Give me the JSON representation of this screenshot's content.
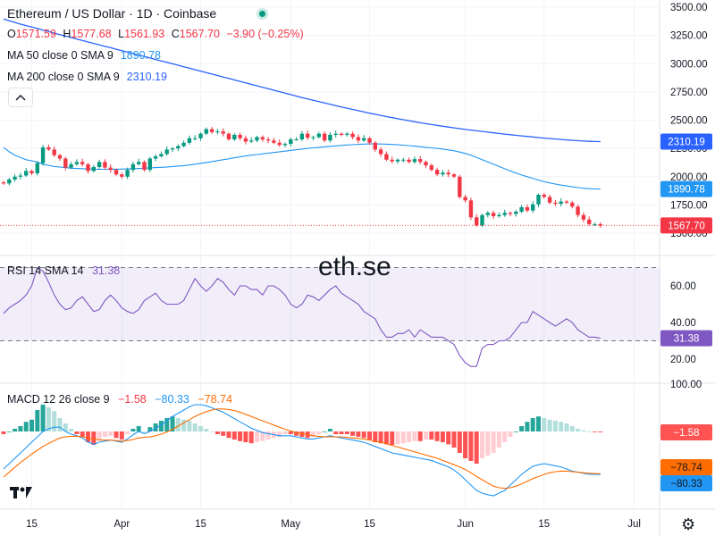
{
  "header": {
    "title": "Ethereum / US Dollar · 1D · Coinbase",
    "ohlc": [
      {
        "label": "O",
        "value": "1571.59"
      },
      {
        "label": "H",
        "value": "1577.68"
      },
      {
        "label": "L",
        "value": "1561.93"
      },
      {
        "label": "C",
        "value": "1567.70"
      },
      {
        "label": "",
        "value": "−3.90 (−0.25%)"
      }
    ],
    "ma50_label": "MA 50 close 0 SMA 9",
    "ma50_value": "1890.78",
    "ma200_label": "MA 200 close 0 SMA 9",
    "ma200_value": "2310.19"
  },
  "watermark": "eth.se",
  "colors": {
    "up": "#089981",
    "down": "#f23645",
    "ma50": "#2196f3",
    "ma200": "#2962ff",
    "rsi": "#7e57c2",
    "macd_line": "#2196f3",
    "signal_line": "#ff6d00"
  },
  "icons": [
    "live-status-icon",
    "collapse-chevron-icon",
    "tradingview-logo-icon",
    "settings-gear-icon"
  ],
  "chart_data": [
    {
      "type": "candlestick",
      "panel": "price",
      "y_ticks": [
        1500,
        1750,
        2000,
        2250,
        2500,
        2750,
        3000,
        3250,
        3500
      ],
      "y_tick_labels": [
        "1500.00",
        "1750.00",
        "2000.00",
        "2250.00",
        "2500.00",
        "2750.00",
        "3000.00",
        "3250.00",
        "3500.00"
      ],
      "ylim": [
        1480,
        3520
      ],
      "x_ticks": [
        {
          "index": 5,
          "label": "15"
        },
        {
          "index": 21,
          "label": "Apr"
        },
        {
          "index": 35,
          "label": "15"
        },
        {
          "index": 51,
          "label": "May"
        },
        {
          "index": 65,
          "label": "15"
        },
        {
          "index": 82,
          "label": "Jun"
        },
        {
          "index": 96,
          "label": "15"
        },
        {
          "index": 112,
          "label": "Jul"
        }
      ],
      "close": [
        1940,
        1975,
        2000,
        2010,
        2050,
        2030,
        2120,
        2260,
        2240,
        2190,
        2160,
        2080,
        2110,
        2130,
        2110,
        2050,
        2085,
        2130,
        2080,
        2060,
        2020,
        2000,
        2060,
        2110,
        2130,
        2060,
        2160,
        2180,
        2200,
        2240,
        2250,
        2270,
        2300,
        2340,
        2340,
        2380,
        2420,
        2395,
        2400,
        2380,
        2330,
        2370,
        2340,
        2310,
        2320,
        2350,
        2330,
        2320,
        2300,
        2280,
        2290,
        2330,
        2330,
        2380,
        2345,
        2350,
        2380,
        2320,
        2370,
        2380,
        2370,
        2380,
        2350,
        2320,
        2340,
        2300,
        2240,
        2200,
        2150,
        2135,
        2150,
        2150,
        2130,
        2155,
        2130,
        2100,
        2060,
        2020,
        2035,
        2020,
        2000,
        1820,
        1790,
        1640,
        1570,
        1660,
        1680,
        1650,
        1660,
        1680,
        1670,
        1690,
        1730,
        1700,
        1755,
        1840,
        1820,
        1770,
        1760,
        1780,
        1770,
        1735,
        1660,
        1620,
        1580,
        1580,
        1568
      ],
      "ma50": [
        2260,
        2220,
        2190,
        2170,
        2150,
        2140,
        2130,
        2110,
        2100,
        2090,
        2085,
        2080,
        2075,
        2072,
        2070,
        2068,
        2066,
        2065,
        2065,
        2065,
        2066,
        2067,
        2068,
        2070,
        2072,
        2075,
        2078,
        2080,
        2083,
        2086,
        2090,
        2094,
        2098,
        2103,
        2110,
        2118,
        2125,
        2133,
        2142,
        2150,
        2158,
        2167,
        2175,
        2183,
        2190,
        2196,
        2202,
        2208,
        2214,
        2220,
        2226,
        2232,
        2238,
        2244,
        2250,
        2255,
        2260,
        2264,
        2268,
        2272,
        2276,
        2280,
        2283,
        2286,
        2288,
        2290,
        2290,
        2289,
        2287,
        2285,
        2282,
        2279,
        2275,
        2270,
        2265,
        2260,
        2255,
        2250,
        2244,
        2237,
        2229,
        2218,
        2205,
        2190,
        2170,
        2150,
        2130,
        2110,
        2090,
        2070,
        2050,
        2032,
        2015,
        2000,
        1985,
        1970,
        1955,
        1945,
        1935,
        1925,
        1918,
        1910,
        1903,
        1898,
        1894,
        1891,
        1890.78
      ],
      "ma200": [
        3395,
        3380,
        3365,
        3350,
        3337,
        3324,
        3311,
        3297,
        3284,
        3270,
        3257,
        3244,
        3231,
        3218,
        3205,
        3192,
        3179,
        3166,
        3153,
        3141,
        3128,
        3115,
        3102,
        3089,
        3076,
        3063,
        3050,
        3037,
        3024,
        3012,
        2999,
        2986,
        2973,
        2960,
        2947,
        2934,
        2921,
        2908,
        2895,
        2882,
        2869,
        2856,
        2843,
        2830,
        2817,
        2804,
        2791,
        2778,
        2765,
        2752,
        2739,
        2726,
        2713,
        2700,
        2688,
        2676,
        2664,
        2652,
        2640,
        2628,
        2617,
        2606,
        2595,
        2584,
        2573,
        2562,
        2552,
        2542,
        2532,
        2522,
        2513,
        2504,
        2495,
        2486,
        2477,
        2469,
        2461,
        2453,
        2446,
        2439,
        2432,
        2425,
        2418,
        2412,
        2406,
        2400,
        2394,
        2388,
        2382,
        2377,
        2371,
        2366,
        2361,
        2356,
        2351,
        2346,
        2341,
        2337,
        2333,
        2329,
        2325,
        2321,
        2318,
        2315,
        2313,
        2311,
        2310.19
      ],
      "last_close_label": "1567.70",
      "ma50_last_label": "1890.78",
      "ma200_last_label": "2310.19"
    },
    {
      "type": "line",
      "panel": "rsi",
      "label": "RSI 14 SMA 14",
      "last_label": "31.38",
      "y_ticks": [
        20,
        40,
        60
      ],
      "y_tick_labels": [
        "20.00",
        "40.00",
        "60.00"
      ],
      "top_cut_label": "100.00",
      "ylim": [
        13,
        75
      ],
      "band": [
        30,
        70
      ],
      "values": [
        45,
        48,
        50,
        52,
        55,
        60,
        70,
        68,
        62,
        55,
        50,
        47,
        48,
        52,
        54,
        50,
        46,
        47,
        52,
        55,
        52,
        48,
        46,
        45,
        47,
        52,
        54,
        56,
        52,
        50,
        50,
        50,
        52,
        58,
        64,
        60,
        57,
        60,
        64,
        62,
        58,
        55,
        60,
        60,
        58,
        58,
        55,
        60,
        60,
        58,
        55,
        50,
        48,
        50,
        55,
        54,
        52,
        55,
        58,
        60,
        56,
        54,
        52,
        50,
        46,
        44,
        42,
        36,
        32,
        32,
        34,
        34,
        36,
        32,
        36,
        34,
        32,
        32,
        32,
        30,
        28,
        22,
        18,
        16,
        16,
        26,
        28,
        28,
        30,
        30,
        32,
        36,
        40,
        40,
        46,
        44,
        42,
        40,
        38,
        40,
        42,
        40,
        36,
        34,
        32,
        32,
        31.38
      ]
    },
    {
      "type": "bar+line",
      "panel": "macd",
      "label": "MACD 12 26 close 9",
      "values_label": [
        "−1.58",
        "−80.33",
        "−78.74"
      ],
      "y_ticks": [],
      "ylim": [
        -140,
        80
      ],
      "histogram": [
        -5,
        0,
        5,
        10,
        18,
        22,
        40,
        50,
        45,
        38,
        25,
        15,
        5,
        -5,
        -10,
        -20,
        -25,
        -15,
        -10,
        -8,
        -12,
        -15,
        -5,
        5,
        10,
        0,
        8,
        15,
        20,
        25,
        28,
        25,
        22,
        20,
        15,
        10,
        5,
        0,
        -5,
        -8,
        -12,
        -15,
        -18,
        -20,
        -22,
        -20,
        -18,
        -15,
        -12,
        -10,
        -5,
        -5,
        -8,
        -10,
        -12,
        -10,
        -5,
        0,
        5,
        -5,
        -5,
        -5,
        -8,
        -10,
        -12,
        -15,
        -20,
        -22,
        -24,
        -25,
        -24,
        -22,
        -20,
        -18,
        -18,
        -15,
        -15,
        -18,
        -20,
        -24,
        -30,
        -40,
        -50,
        -55,
        -60,
        -50,
        -45,
        -40,
        -30,
        -20,
        -10,
        0,
        10,
        18,
        25,
        28,
        25,
        22,
        20,
        18,
        15,
        10,
        5,
        2,
        0,
        -1,
        -1.58
      ],
      "macd_line": [
        -70,
        -60,
        -50,
        -40,
        -30,
        -20,
        -10,
        0,
        5,
        8,
        8,
        0,
        -5,
        -8,
        -12,
        -20,
        -24,
        -20,
        -18,
        -16,
        -18,
        -20,
        -14,
        -6,
        0,
        -4,
        0,
        6,
        12,
        20,
        28,
        34,
        40,
        46,
        50,
        50,
        48,
        44,
        40,
        36,
        30,
        24,
        18,
        12,
        6,
        2,
        -2,
        -4,
        -6,
        -8,
        -8,
        -8,
        -10,
        -12,
        -14,
        -14,
        -12,
        -10,
        -8,
        -10,
        -12,
        -14,
        -16,
        -18,
        -20,
        -24,
        -28,
        -32,
        -36,
        -40,
        -42,
        -44,
        -46,
        -48,
        -50,
        -52,
        -54,
        -58,
        -62,
        -66,
        -72,
        -80,
        -90,
        -100,
        -110,
        -115,
        -118,
        -120,
        -115,
        -110,
        -100,
        -90,
        -80,
        -72,
        -65,
        -62,
        -60,
        -62,
        -64,
        -66,
        -70,
        -74,
        -76,
        -78,
        -80,
        -80,
        -80.33
      ],
      "signal_line": [
        -85,
        -76,
        -67,
        -58,
        -50,
        -42,
        -35,
        -28,
        -22,
        -17,
        -12,
        -10,
        -9,
        -9,
        -10,
        -12,
        -14,
        -16,
        -16,
        -16,
        -17,
        -18,
        -17,
        -15,
        -12,
        -11,
        -10,
        -8,
        -5,
        -1,
        4,
        10,
        16,
        22,
        28,
        33,
        37,
        40,
        42,
        42,
        41,
        39,
        36,
        32,
        28,
        24,
        20,
        16,
        12,
        8,
        4,
        1,
        -2,
        -4,
        -6,
        -8,
        -9,
        -10,
        -10,
        -10,
        -10,
        -11,
        -12,
        -13,
        -14,
        -16,
        -18,
        -20,
        -23,
        -26,
        -29,
        -32,
        -35,
        -38,
        -41,
        -44,
        -47,
        -50,
        -54,
        -58,
        -62,
        -66,
        -71,
        -77,
        -84,
        -90,
        -96,
        -102,
        -105,
        -106,
        -105,
        -102,
        -98,
        -93,
        -88,
        -84,
        -80,
        -77,
        -75,
        -74,
        -74,
        -75,
        -76,
        -77,
        -78,
        -78.5,
        -78.74
      ]
    }
  ]
}
